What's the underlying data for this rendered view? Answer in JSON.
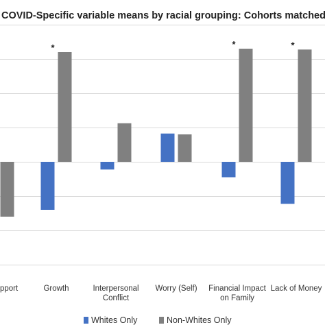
{
  "chart_data": {
    "type": "bar",
    "title": "COVID-Specific variable means by racial grouping: Cohorts matched  o",
    "categories": [
      [
        "pport"
      ],
      [
        "Growth"
      ],
      [
        "Interpersonal",
        "Conflict"
      ],
      [
        "Worry (Self)"
      ],
      [
        "Financial Impact",
        "on Family"
      ],
      [
        "Lack of Money"
      ]
    ],
    "series": [
      {
        "name": "Whites Only",
        "color": "#4472c4",
        "values": [
          null,
          -0.28,
          -0.045,
          0.165,
          -0.09,
          -0.245
        ]
      },
      {
        "name": "Non-Whites Only",
        "color": "#808080",
        "values": [
          -0.32,
          0.64,
          0.225,
          0.16,
          0.66,
          0.655
        ]
      }
    ],
    "annotations": [
      {
        "category_index": 1,
        "text": "*"
      },
      {
        "category_index": 4,
        "text": "*"
      },
      {
        "category_index": 5,
        "text": "*"
      }
    ],
    "ylim": [
      -0.6,
      0.8
    ],
    "y_grid_step": 0.2,
    "grid": true,
    "legend_position": "bottom",
    "xlabel": "",
    "ylabel": ""
  }
}
